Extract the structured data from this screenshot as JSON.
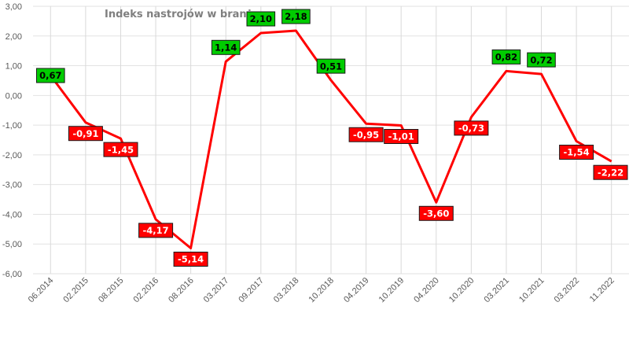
{
  "chart_data": {
    "type": "line",
    "title": "Indeks nastrojów w branży",
    "xlabel": "",
    "ylabel": "",
    "ylim": [
      -6,
      3
    ],
    "y_ticks": [
      "3,00",
      "2,00",
      "1,00",
      "0,00",
      "-1,00",
      "-2,00",
      "-3,00",
      "-4,00",
      "-5,00",
      "-6,00"
    ],
    "grid": true,
    "categories": [
      "06.2014",
      "02.2015",
      "08.2015",
      "02.2016",
      "08.2016",
      "03.2017",
      "09.2017",
      "03.2018",
      "10.2018",
      "04.2019",
      "10.2019",
      "04.2020",
      "10.2020",
      "03.2021",
      "10.2021",
      "03.2022",
      "11.2022"
    ],
    "values": [
      0.67,
      -0.91,
      -1.45,
      -4.17,
      -5.14,
      1.14,
      2.1,
      2.18,
      0.51,
      -0.95,
      -1.01,
      -3.6,
      -0.73,
      0.82,
      0.72,
      -1.54,
      -2.22
    ],
    "data_labels": [
      "0,67",
      "-0,91",
      "-1,45",
      "-4,17",
      "-5,14",
      "1,14",
      "2,10",
      "2,18",
      "0,51",
      "-0,95",
      "-1,01",
      "-3,60",
      "-0,73",
      "0,82",
      "0,72",
      "-1,54",
      "-2,22"
    ],
    "colors": {
      "line": "#ff0000",
      "positive_label_bg": "#00cc00",
      "negative_label_bg": "#ff0000",
      "positive_label_text": "#000000",
      "negative_label_text": "#ffffff"
    }
  }
}
